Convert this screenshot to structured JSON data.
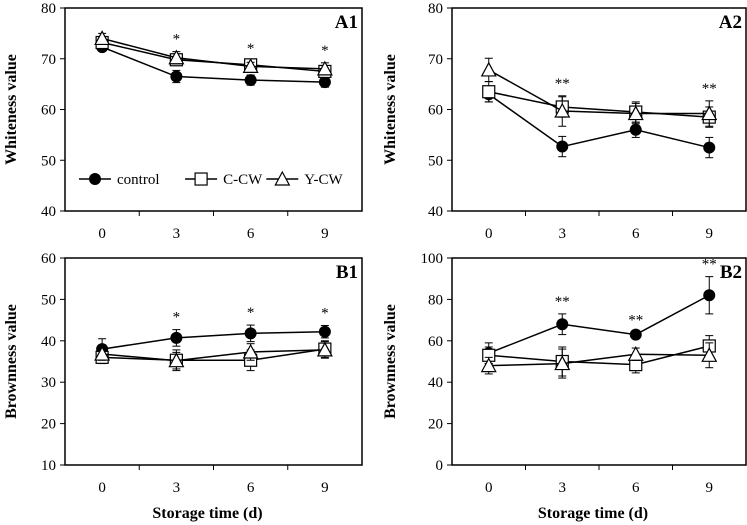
{
  "chart_data": [
    {
      "id": "A1",
      "type": "line",
      "title": "A1",
      "ylabel": "Whiteness value",
      "xlabel": "",
      "x": [
        0,
        3,
        6,
        9
      ],
      "ylim": [
        40,
        80
      ],
      "yticks": [
        40,
        50,
        60,
        70,
        80
      ],
      "series": [
        {
          "name": "control",
          "marker": "filled-circle",
          "values": [
            72.3,
            66.5,
            65.8,
            65.4
          ],
          "err": [
            0.8,
            1.2,
            1,
            1
          ]
        },
        {
          "name": "C-CW",
          "marker": "open-square",
          "values": [
            73.2,
            69.8,
            68.8,
            67.5
          ],
          "err": [
            1,
            1,
            0.8,
            1
          ]
        },
        {
          "name": "Y-CW",
          "marker": "open-triangle",
          "values": [
            74,
            70.2,
            68.5,
            68
          ],
          "err": [
            1,
            1.2,
            0.8,
            1.2
          ]
        }
      ],
      "annotations": [
        "",
        "*",
        "*",
        "*"
      ],
      "legend": "bottom-left"
    },
    {
      "id": "A2",
      "type": "line",
      "title": "A2",
      "ylabel": "Whiteness value",
      "xlabel": "",
      "x": [
        0,
        3,
        6,
        9
      ],
      "ylim": [
        40,
        80
      ],
      "yticks": [
        40,
        50,
        60,
        70,
        80
      ],
      "series": [
        {
          "name": "control",
          "marker": "filled-circle",
          "values": [
            63,
            52.7,
            56,
            52.5
          ],
          "err": [
            1.5,
            2,
            1.5,
            2
          ]
        },
        {
          "name": "C-CW",
          "marker": "open-square",
          "values": [
            63.5,
            60.5,
            59.5,
            58.5
          ],
          "err": [
            2,
            2,
            2,
            2
          ]
        },
        {
          "name": "Y-CW",
          "marker": "open-triangle",
          "values": [
            67.8,
            59.7,
            59.2,
            59.2
          ],
          "err": [
            2.3,
            3,
            2,
            2.5
          ]
        }
      ],
      "annotations": [
        "",
        "**",
        "",
        "**"
      ]
    },
    {
      "id": "B1",
      "type": "line",
      "title": "B1",
      "ylabel": "Brownness value",
      "xlabel": "Storage time (d)",
      "x": [
        0,
        3,
        6,
        9
      ],
      "ylim": [
        10,
        60
      ],
      "yticks": [
        10,
        20,
        30,
        40,
        50,
        60
      ],
      "series": [
        {
          "name": "control",
          "marker": "filled-circle",
          "values": [
            38,
            40.7,
            41.8,
            42.2
          ],
          "err": [
            2.5,
            2,
            2,
            1.5
          ]
        },
        {
          "name": "C-CW",
          "marker": "open-square",
          "values": [
            36,
            35.3,
            35.3,
            38
          ],
          "err": [
            1.5,
            2.5,
            2.5,
            2
          ]
        },
        {
          "name": "Y-CW",
          "marker": "open-triangle",
          "values": [
            36.8,
            35.2,
            37.3,
            37.8
          ],
          "err": [
            1.5,
            2,
            2,
            2
          ]
        }
      ],
      "annotations": [
        "",
        "*",
        "*",
        "*"
      ]
    },
    {
      "id": "B2",
      "type": "line",
      "title": "B2",
      "ylabel": "Brownness value",
      "xlabel": "Storage time (d)",
      "x": [
        0,
        3,
        6,
        9
      ],
      "ylim": [
        0,
        100
      ],
      "yticks": [
        0,
        20,
        40,
        60,
        80,
        100
      ],
      "series": [
        {
          "name": "control",
          "marker": "filled-circle",
          "values": [
            54,
            68,
            63,
            82
          ],
          "err": [
            5,
            5,
            1,
            9
          ]
        },
        {
          "name": "C-CW",
          "marker": "open-square",
          "values": [
            53,
            50,
            48.5,
            57.5
          ],
          "err": [
            4,
            7,
            4,
            5
          ]
        },
        {
          "name": "Y-CW",
          "marker": "open-triangle",
          "values": [
            48,
            49,
            53.5,
            53
          ],
          "err": [
            4,
            7,
            3,
            6
          ]
        }
      ],
      "annotations": [
        "",
        "**",
        "**",
        "**"
      ]
    }
  ]
}
